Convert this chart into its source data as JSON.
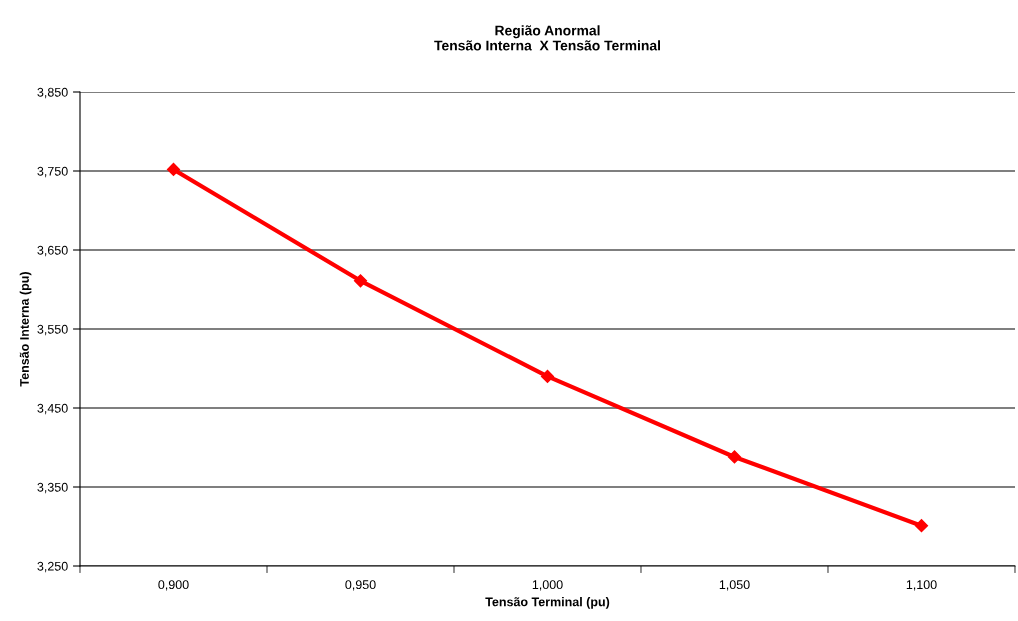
{
  "chart_data": {
    "type": "line",
    "title": "Região Anormal\nTensão Interna  X Tensão Terminal",
    "xlabel": "Tensão Terminal (pu)",
    "ylabel": "Tensão Interna (pu)",
    "categories": [
      "0,900",
      "0,950",
      "1,000",
      "1,050",
      "1,100"
    ],
    "series": [
      {
        "color": "#ff0000",
        "values": [
          3.752,
          3.611,
          3.49,
          3.388,
          3.301
        ]
      }
    ],
    "ylim": [
      3.25,
      3.85
    ],
    "yticks": [
      {
        "value": 3.25,
        "label": "3,250"
      },
      {
        "value": 3.35,
        "label": "3,350"
      },
      {
        "value": 3.45,
        "label": "3,450"
      },
      {
        "value": 3.55,
        "label": "3,550"
      },
      {
        "value": 3.65,
        "label": "3,650"
      },
      {
        "value": 3.75,
        "label": "3,750"
      },
      {
        "value": 3.85,
        "label": "3,850"
      }
    ],
    "grid": "y",
    "legend": false,
    "marker": "diamond",
    "line_style": "solid"
  }
}
